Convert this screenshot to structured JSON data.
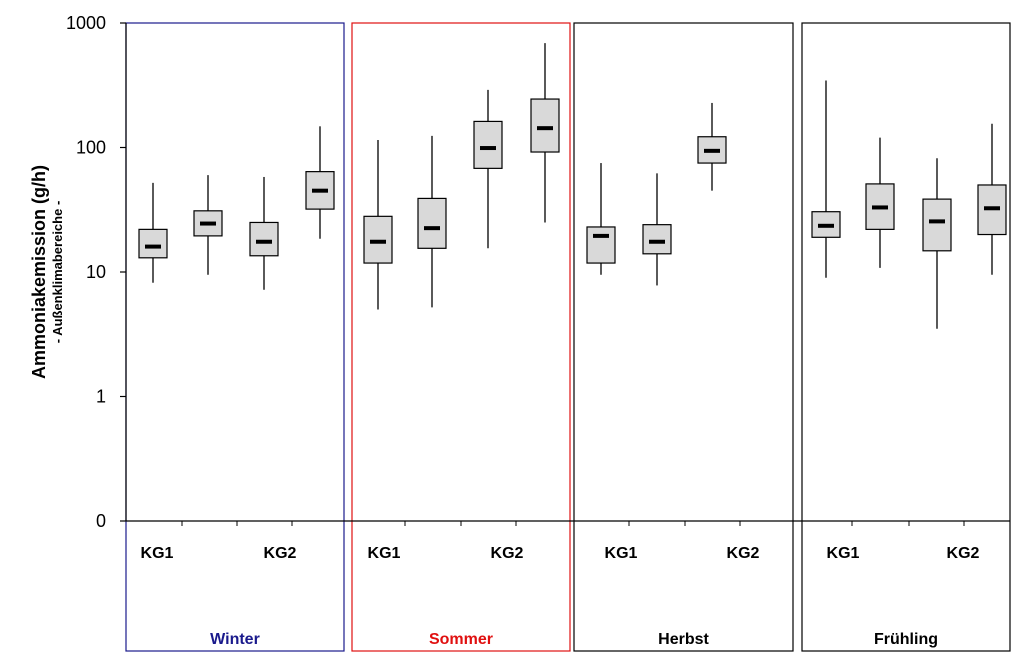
{
  "chart_data": {
    "type": "box",
    "y_scale": "log",
    "ylim": [
      0.1,
      1000
    ],
    "y_ticks": [
      {
        "value": 1000,
        "label": "1000"
      },
      {
        "value": 100,
        "label": "100"
      },
      {
        "value": 10,
        "label": "10"
      },
      {
        "value": 1,
        "label": "1"
      },
      {
        "value": 0.1,
        "label": "0"
      }
    ],
    "ylabel": "Ammoniakemission (g/h)",
    "ylabel_sub": "- Außenklimabereiche -",
    "colors": {
      "box_fill": "#d9d9d9",
      "winter": "#1a1a8c",
      "sommer": "#e01010",
      "herbst": "#000000",
      "fruehling": "#000000"
    },
    "seasons": [
      {
        "name": "Winter",
        "color": "#1a1a8c",
        "groups": [
          "KG1",
          "KG2"
        ],
        "boxes": [
          {
            "min": 8.2,
            "q1": 13,
            "median": 16,
            "q3": 22,
            "max": 52
          },
          {
            "min": 9.5,
            "q1": 19.5,
            "median": 24.5,
            "q3": 31,
            "max": 60
          },
          {
            "min": 7.2,
            "q1": 13.5,
            "median": 17.5,
            "q3": 25,
            "max": 58
          },
          {
            "min": 18.5,
            "q1": 32,
            "median": 45,
            "q3": 64,
            "max": 148
          }
        ]
      },
      {
        "name": "Sommer",
        "color": "#e01010",
        "groups": [
          "KG1",
          "KG2"
        ],
        "boxes": [
          {
            "min": 5,
            "q1": 11.8,
            "median": 17.5,
            "q3": 28,
            "max": 115
          },
          {
            "min": 5.2,
            "q1": 15.5,
            "median": 22.5,
            "q3": 39,
            "max": 124
          },
          {
            "min": 15.5,
            "q1": 68,
            "median": 99,
            "q3": 162,
            "max": 290
          },
          {
            "min": 25,
            "q1": 92,
            "median": 143,
            "q3": 245,
            "max": 690
          }
        ]
      },
      {
        "name": "Herbst",
        "color": "#000000",
        "groups": [
          "KG1",
          "KG2"
        ],
        "boxes": [
          {
            "min": 9.5,
            "q1": 11.8,
            "median": 19.5,
            "q3": 23,
            "max": 75
          },
          {
            "min": 7.8,
            "q1": 14,
            "median": 17.5,
            "q3": 24,
            "max": 62
          },
          {
            "min": 45,
            "q1": 75,
            "median": 94,
            "q3": 122,
            "max": 228
          }
        ]
      },
      {
        "name": "Frühling",
        "color": "#000000",
        "groups": [
          "KG1",
          "KG2"
        ],
        "boxes": [
          {
            "min": 9,
            "q1": 19,
            "median": 23.5,
            "q3": 30.5,
            "max": 345
          },
          {
            "min": 10.8,
            "q1": 22,
            "median": 33,
            "q3": 51,
            "max": 120
          },
          {
            "min": 3.5,
            "q1": 14.8,
            "median": 25.5,
            "q3": 38.5,
            "max": 82
          },
          {
            "min": 9.5,
            "q1": 20,
            "median": 32.5,
            "q3": 50,
            "max": 155
          }
        ]
      }
    ]
  }
}
